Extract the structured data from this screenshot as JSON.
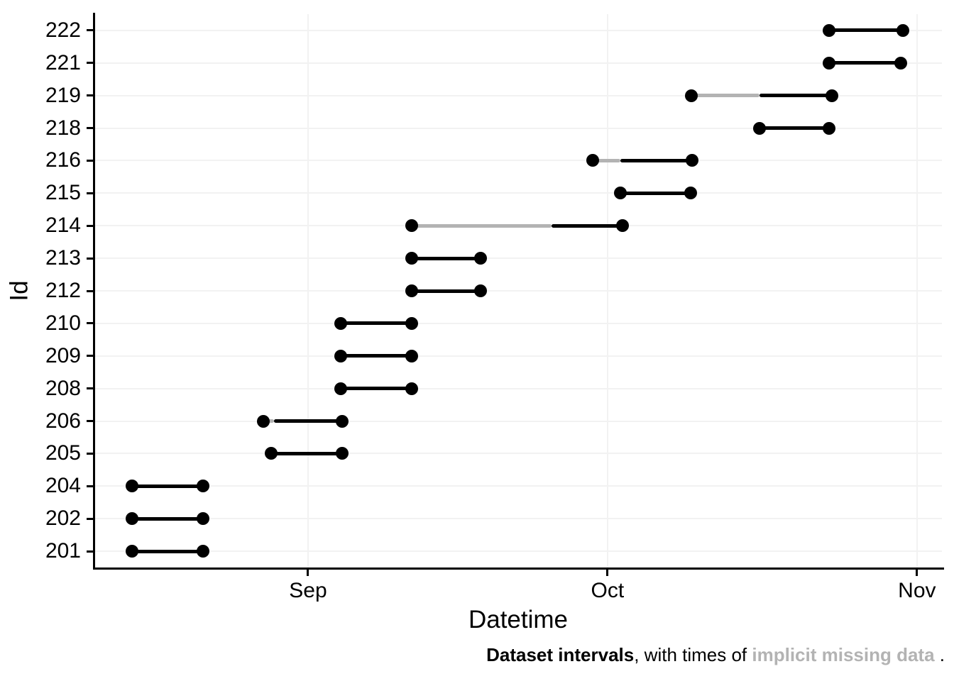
{
  "figure": {
    "x_axis_title": "Datetime",
    "y_axis_title": "Id",
    "caption_parts": [
      {
        "text": "Dataset intervals",
        "bold": true,
        "muted": false
      },
      {
        "text": ", with times of ",
        "bold": false,
        "muted": false
      },
      {
        "text": "implicit missing data",
        "bold": true,
        "muted": true
      },
      {
        "text": " .",
        "bold": false,
        "muted": false
      }
    ]
  },
  "chart_data": {
    "type": "interval",
    "xlabel": "Datetime",
    "ylabel": "Id",
    "caption": "Dataset intervals, with times of implicit missing data.",
    "x_axis": {
      "unit": "days relative to Sep 1",
      "ticks": [
        {
          "label": "Sep",
          "day": 0
        },
        {
          "label": "Oct",
          "day": 30
        },
        {
          "label": "Nov",
          "day": 61
        }
      ],
      "range_days": [
        -21.4,
        63.5
      ],
      "grid": true
    },
    "y_categories_top_to_bottom": [
      "222",
      "221",
      "219",
      "218",
      "216",
      "215",
      "214",
      "213",
      "212",
      "210",
      "209",
      "208",
      "206",
      "205",
      "204",
      "202",
      "201"
    ],
    "colors": {
      "data": "#000000",
      "missing": "#b3b3b3",
      "gridline": "#f2f2f2",
      "axis": "#000000"
    },
    "legend": "none",
    "intervals": [
      {
        "id": "222",
        "start_day": 52.2,
        "end_day": 59.6,
        "missing_until_day": null,
        "start_est": "Oct 23",
        "end_est": "Oct 30",
        "missing_until_est": null
      },
      {
        "id": "221",
        "start_day": 52.2,
        "end_day": 59.4,
        "missing_until_day": null,
        "start_est": "Oct 23",
        "end_est": "Oct 30",
        "missing_until_est": null
      },
      {
        "id": "219",
        "start_day": 38.4,
        "end_day": 52.5,
        "missing_until_day": 45.2,
        "start_est": "Oct 9",
        "end_est": "Oct 23",
        "missing_until_est": "Oct 16"
      },
      {
        "id": "218",
        "start_day": 45.2,
        "end_day": 52.2,
        "missing_until_day": null,
        "start_est": "Oct 16",
        "end_est": "Oct 23",
        "missing_until_est": null
      },
      {
        "id": "216",
        "start_day": 28.5,
        "end_day": 38.5,
        "missing_until_day": 31.3,
        "start_est": "Sep 29",
        "end_est": "Oct 9",
        "missing_until_est": "Oct 2"
      },
      {
        "id": "215",
        "start_day": 31.3,
        "end_day": 38.3,
        "missing_until_day": null,
        "start_est": "Oct 2",
        "end_est": "Oct 9",
        "missing_until_est": null
      },
      {
        "id": "214",
        "start_day": 10.4,
        "end_day": 31.5,
        "missing_until_day": 24.4,
        "start_est": "Sep 11",
        "end_est": "Oct 2",
        "missing_until_est": "Sep 25"
      },
      {
        "id": "213",
        "start_day": 10.4,
        "end_day": 17.3,
        "missing_until_day": null,
        "start_est": "Sep 11",
        "end_est": "Sep 18",
        "missing_until_est": null
      },
      {
        "id": "212",
        "start_day": 10.4,
        "end_day": 17.3,
        "missing_until_day": null,
        "start_est": "Sep 11",
        "end_est": "Sep 18",
        "missing_until_est": null
      },
      {
        "id": "210",
        "start_day": 3.3,
        "end_day": 10.4,
        "missing_until_day": null,
        "start_est": "Sep 4",
        "end_est": "Sep 11",
        "missing_until_est": null
      },
      {
        "id": "209",
        "start_day": 3.3,
        "end_day": 10.4,
        "missing_until_day": null,
        "start_est": "Sep 4",
        "end_est": "Sep 11",
        "missing_until_est": null
      },
      {
        "id": "208",
        "start_day": 3.3,
        "end_day": 10.4,
        "missing_until_day": null,
        "start_est": "Sep 4",
        "end_est": "Sep 11",
        "missing_until_est": null
      },
      {
        "id": "206",
        "start_day": -4.5,
        "end_day": 3.4,
        "missing_until_day": -3.4,
        "start_est": "Aug 27",
        "end_est": "Sep 4",
        "missing_until_est": "Aug 28"
      },
      {
        "id": "205",
        "start_day": -3.7,
        "end_day": 3.4,
        "missing_until_day": null,
        "start_est": "Aug 28",
        "end_est": "Sep 4",
        "missing_until_est": null
      },
      {
        "id": "204",
        "start_day": -17.6,
        "end_day": -10.5,
        "missing_until_day": null,
        "start_est": "Aug 14",
        "end_est": "Aug 21",
        "missing_until_est": null
      },
      {
        "id": "202",
        "start_day": -17.6,
        "end_day": -10.5,
        "missing_until_day": null,
        "start_est": "Aug 14",
        "end_est": "Aug 21",
        "missing_until_est": null
      },
      {
        "id": "201",
        "start_day": -17.6,
        "end_day": -10.5,
        "missing_until_day": null,
        "start_est": "Aug 14",
        "end_est": "Aug 21",
        "missing_until_est": null
      }
    ]
  }
}
